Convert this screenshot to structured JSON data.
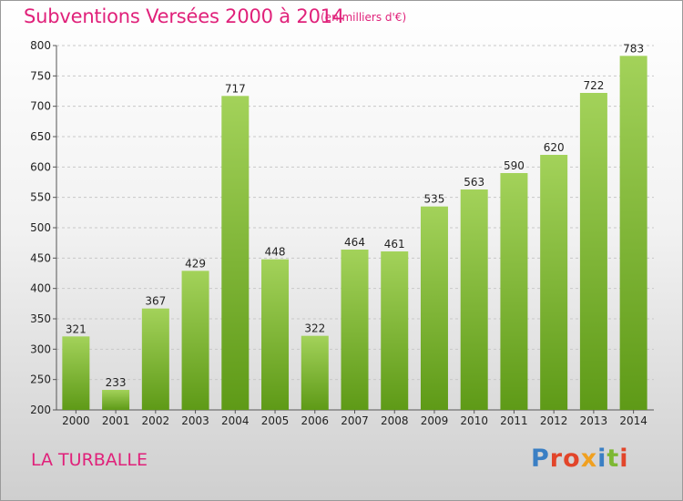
{
  "header": {
    "title": "Subventions Versées 2000 à 2014",
    "unit_note": "(en milliers d'€)"
  },
  "footer": {
    "town": "LA TURBALLE",
    "logo": "Proxiti",
    "logo_colors": [
      "#3a7fc4",
      "#e2452a",
      "#e2452a",
      "#f0a020",
      "#3a7fc4",
      "#7db833",
      "#e2452a"
    ]
  },
  "colors": {
    "bar_top": "#a3d25a",
    "bar_bottom": "#5e9a17",
    "accent": "#e0217a"
  },
  "chart_data": {
    "type": "bar",
    "categories": [
      "2000",
      "2001",
      "2002",
      "2003",
      "2004",
      "2005",
      "2006",
      "2007",
      "2008",
      "2009",
      "2010",
      "2011",
      "2012",
      "2013",
      "2014"
    ],
    "values": [
      321,
      233,
      367,
      429,
      717,
      448,
      322,
      464,
      461,
      535,
      563,
      590,
      620,
      722,
      783
    ],
    "title": "Subventions Versées 2000 à 2014",
    "ylim": [
      200,
      800
    ],
    "yticks": [
      200,
      250,
      300,
      350,
      400,
      450,
      500,
      550,
      600,
      650,
      700,
      750,
      800
    ],
    "grid": true
  }
}
